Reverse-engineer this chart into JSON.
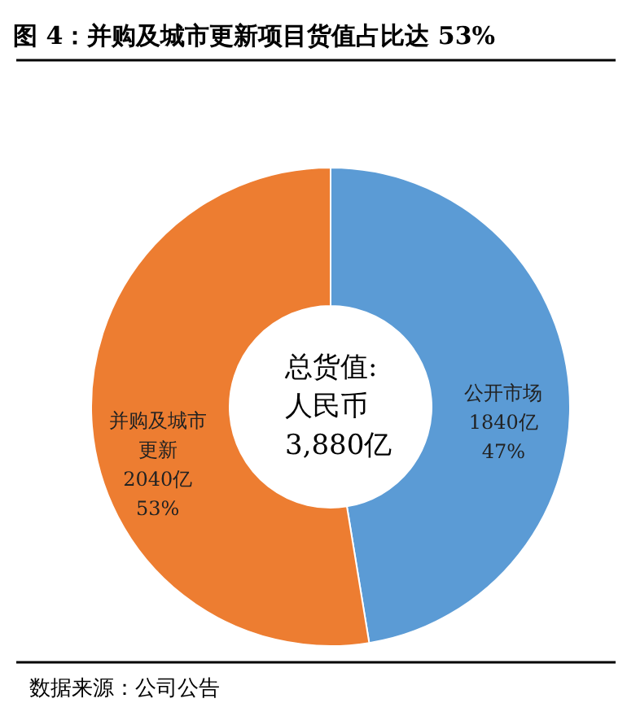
{
  "chart_data": {
    "type": "donut",
    "title": "图 4：并购及城市更新项目货值占比达 53%",
    "categories": [
      "公开市场",
      "并购及城市更新"
    ],
    "values": [
      1840,
      2040
    ],
    "colors": [
      "#5b9bd5",
      "#ed7d31"
    ],
    "value_labels": [
      "1840亿\n47%",
      "2040亿\n53%"
    ],
    "annotations": [
      "总货值:\n人民币\n3,880亿",
      "数据来源：公司公告"
    ]
  }
}
